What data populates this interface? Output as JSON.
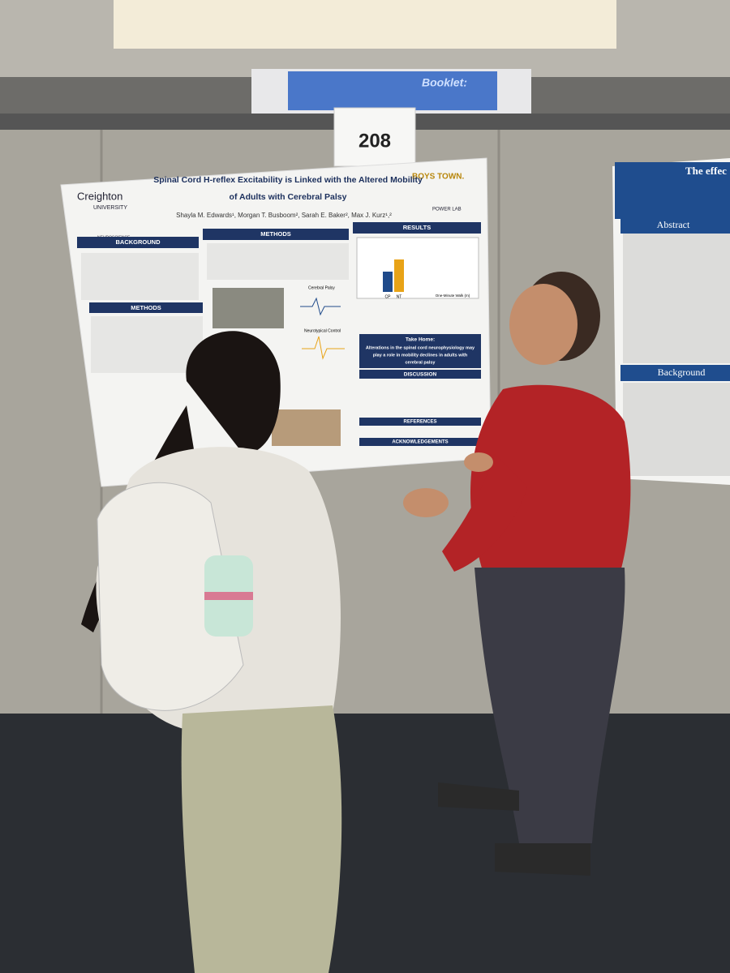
{
  "booth_number": "208",
  "screen_text": "Booklet:",
  "poster": {
    "logo_left": "Creighton",
    "logo_left_sub": "UNIVERSITY",
    "logo_neuro": "NEUROSCIENCE",
    "logo_right": "BOYS TOWN.",
    "lab": "POWER LAB",
    "title_line1": "Spinal Cord H-reflex Excitability is Linked with the Altered Mobility",
    "title_line2": "of Adults with Cerebral Palsy",
    "authors": "Shayla M. Edwards¹, Morgan T. Busboom², Sarah E. Baker², Max J. Kurz¹,²",
    "sections": [
      "BACKGROUND",
      "METHODS",
      "RESULTS",
      "METHODS",
      "DISCUSSION",
      "REFERENCES",
      "ACKNOWLEDGEMENTS"
    ],
    "take_home_label": "Take Home:",
    "take_home": [
      "Alterations in the spinal cord neurophysiology may",
      "play a role in mobility declines in adults with",
      "cerebral palsy"
    ],
    "chart_labels": [
      "CP",
      "NT",
      "Cerebral Palsy",
      "Neurotypical Control",
      "One-Minute Walk (m)"
    ]
  },
  "side_poster": {
    "title": "The effec",
    "sections": [
      "Abstract",
      "Background"
    ]
  }
}
